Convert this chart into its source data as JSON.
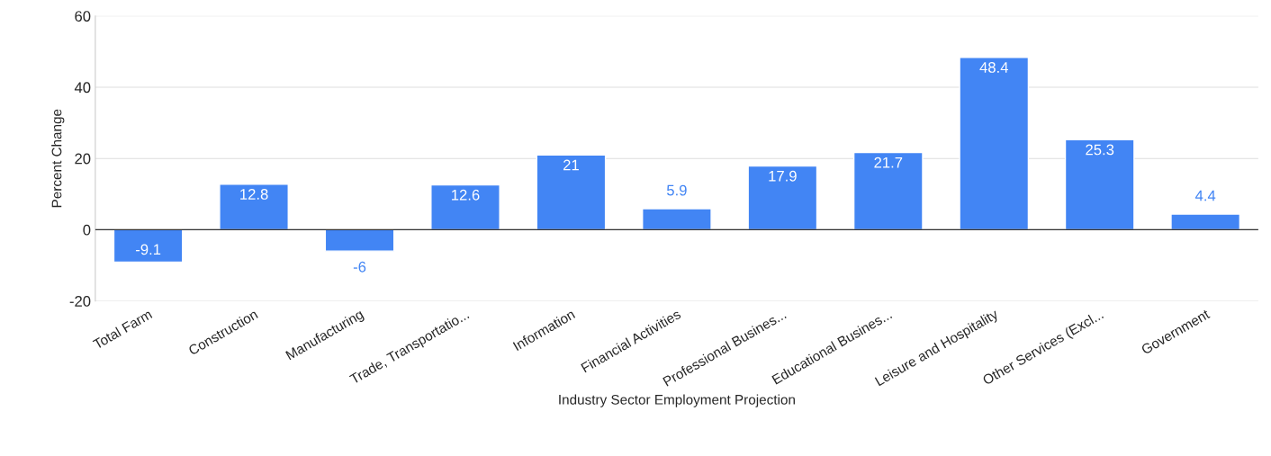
{
  "chart_data": {
    "type": "bar",
    "xlabel": "Industry Sector Employment Projection",
    "ylabel": "Percent Change",
    "categories": [
      "Total Farm",
      "Construction",
      "Manufacturing",
      "Trade, Transportatio...",
      "Information",
      "Financial Activities",
      "Professional Busines...",
      "Educational Busines...",
      "Leisure and Hospitality",
      "Other Services (Excl...",
      "Government"
    ],
    "values": [
      -9.1,
      12.8,
      -6,
      12.6,
      21,
      5.9,
      17.9,
      21.7,
      48.4,
      25.3,
      4.4
    ],
    "color": "#4285f4",
    "ylim": [
      -20,
      60
    ],
    "yticks": [
      -20,
      0,
      20,
      40,
      60
    ],
    "grid": "y",
    "data_labels": true
  }
}
